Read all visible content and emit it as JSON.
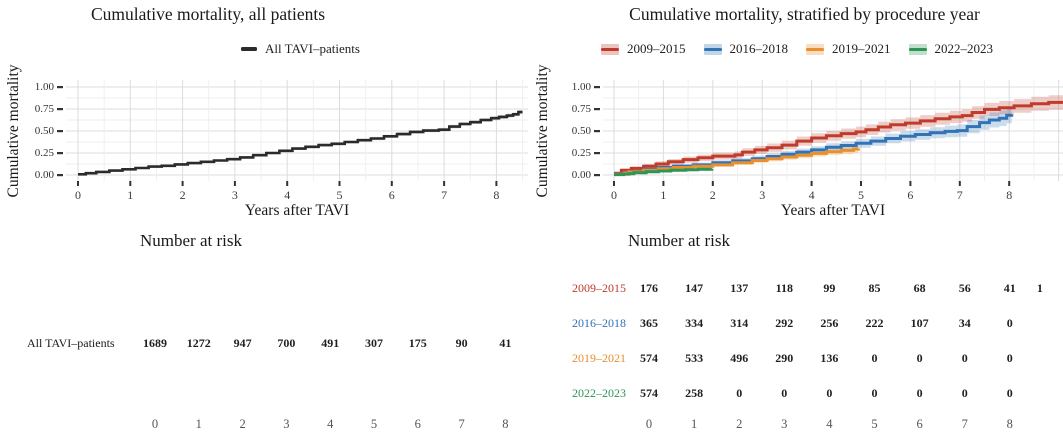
{
  "chart_data": [
    {
      "type": "line",
      "subtype": "cumulative-incidence-step-curve",
      "title": "Cumulative mortality, all patients",
      "xlabel": "Years after TAVI",
      "ylabel": "Cumulative mortality",
      "xlim": [
        0,
        8.55
      ],
      "ylim": [
        0,
        1
      ],
      "xticks": [
        "0",
        "1",
        "2",
        "3",
        "4",
        "5",
        "6",
        "7",
        "8"
      ],
      "yticks": [
        "1.00",
        "0.75",
        "0.50",
        "0.25",
        "0.00"
      ],
      "ytick_values": [
        1,
        0.75,
        0.5,
        0.25,
        0
      ],
      "grid": "major+minor",
      "legend_position": "top",
      "legend_key": "line",
      "series": [
        {
          "name": "All TAVI–patients",
          "color": "#2b2b2b",
          "band_opacity": 0.16,
          "points_t_v_ci": [
            [
              0,
              0.008,
              0.01
            ],
            [
              0.15,
              0.02,
              0.01
            ],
            [
              0.35,
              0.035,
              0.011
            ],
            [
              0.6,
              0.05,
              0.011
            ],
            [
              0.85,
              0.065,
              0.012
            ],
            [
              1.1,
              0.08,
              0.012
            ],
            [
              1.35,
              0.095,
              0.012
            ],
            [
              1.6,
              0.105,
              0.013
            ],
            [
              1.85,
              0.12,
              0.013
            ],
            [
              2.1,
              0.135,
              0.013
            ],
            [
              2.35,
              0.15,
              0.014
            ],
            [
              2.6,
              0.165,
              0.014
            ],
            [
              2.85,
              0.18,
              0.014
            ],
            [
              3.1,
              0.2,
              0.015
            ],
            [
              3.35,
              0.225,
              0.015
            ],
            [
              3.6,
              0.25,
              0.015
            ],
            [
              3.85,
              0.275,
              0.016
            ],
            [
              4.1,
              0.3,
              0.016
            ],
            [
              4.35,
              0.32,
              0.016
            ],
            [
              4.6,
              0.34,
              0.017
            ],
            [
              4.85,
              0.355,
              0.017
            ],
            [
              5.1,
              0.375,
              0.017
            ],
            [
              5.35,
              0.395,
              0.018
            ],
            [
              5.6,
              0.415,
              0.018
            ],
            [
              5.85,
              0.44,
              0.018
            ],
            [
              6.1,
              0.465,
              0.019
            ],
            [
              6.35,
              0.49,
              0.019
            ],
            [
              6.6,
              0.505,
              0.019
            ],
            [
              6.9,
              0.515,
              0.02
            ],
            [
              7.1,
              0.55,
              0.02
            ],
            [
              7.3,
              0.58,
              0.021
            ],
            [
              7.5,
              0.6,
              0.021
            ],
            [
              7.7,
              0.625,
              0.022
            ],
            [
              7.9,
              0.645,
              0.022
            ],
            [
              8.05,
              0.66,
              0.023
            ],
            [
              8.2,
              0.675,
              0.023
            ],
            [
              8.32,
              0.69,
              0.024
            ],
            [
              8.42,
              0.715,
              0.024
            ],
            [
              8.5,
              0.715,
              0.025
            ]
          ]
        }
      ],
      "risk_table": {
        "heading": "Number at risk",
        "rows": [
          {
            "label": "All TAVI–patients",
            "color": "#1a1a1a",
            "values": [
              "1689",
              "1272",
              "947",
              "700",
              "491",
              "307",
              "175",
              "90",
              "41"
            ],
            "partial_next": ""
          }
        ],
        "years": [
          "0",
          "1",
          "2",
          "3",
          "4",
          "5",
          "6",
          "7",
          "8"
        ]
      }
    },
    {
      "type": "line",
      "subtype": "cumulative-incidence-step-curve-with-ci",
      "title": "Cumulative mortality, stratified by procedure year",
      "xlabel": "Years after TAVI",
      "ylabel": "Cumulative mortality",
      "xlim": [
        0,
        9.2
      ],
      "ylim": [
        0,
        1
      ],
      "xticks": [
        "0",
        "1",
        "2",
        "3",
        "4",
        "5",
        "6",
        "7",
        "8"
      ],
      "yticks": [
        "1.00",
        "0.75",
        "0.50",
        "0.25",
        "0.00"
      ],
      "ytick_values": [
        1,
        0.75,
        0.5,
        0.25,
        0
      ],
      "grid": "major+minor",
      "legend_position": "top",
      "legend_key": "line+band",
      "series": [
        {
          "name": "2009–2015",
          "color": "#bf3b2b",
          "band_opacity": 0.25,
          "points_t_v_ci": [
            [
              0,
              0.02,
              0.012
            ],
            [
              0.15,
              0.055,
              0.018
            ],
            [
              0.35,
              0.075,
              0.022
            ],
            [
              0.6,
              0.1,
              0.026
            ],
            [
              0.85,
              0.125,
              0.03
            ],
            [
              1.1,
              0.15,
              0.032
            ],
            [
              1.4,
              0.175,
              0.035
            ],
            [
              1.7,
              0.195,
              0.037
            ],
            [
              2.0,
              0.215,
              0.04
            ],
            [
              2.45,
              0.228,
              0.04
            ],
            [
              2.6,
              0.26,
              0.044
            ],
            [
              2.85,
              0.285,
              0.046
            ],
            [
              3.1,
              0.31,
              0.048
            ],
            [
              3.4,
              0.34,
              0.05
            ],
            [
              3.7,
              0.385,
              0.052
            ],
            [
              4.0,
              0.42,
              0.055
            ],
            [
              4.3,
              0.445,
              0.056
            ],
            [
              4.6,
              0.47,
              0.058
            ],
            [
              4.9,
              0.49,
              0.06
            ],
            [
              5.1,
              0.515,
              0.06
            ],
            [
              5.35,
              0.545,
              0.062
            ],
            [
              5.6,
              0.57,
              0.064
            ],
            [
              5.9,
              0.59,
              0.065
            ],
            [
              6.2,
              0.615,
              0.066
            ],
            [
              6.5,
              0.64,
              0.068
            ],
            [
              6.8,
              0.66,
              0.07
            ],
            [
              7.05,
              0.675,
              0.07
            ],
            [
              7.25,
              0.71,
              0.072
            ],
            [
              7.5,
              0.745,
              0.074
            ],
            [
              7.8,
              0.765,
              0.076
            ],
            [
              8.1,
              0.785,
              0.078
            ],
            [
              8.45,
              0.81,
              0.08
            ],
            [
              8.8,
              0.825,
              0.082
            ],
            [
              9.2,
              0.83,
              0.085
            ]
          ]
        },
        {
          "name": "2016–2018",
          "color": "#3173b5",
          "band_opacity": 0.25,
          "points_t_v_ci": [
            [
              0,
              0.01,
              0.008
            ],
            [
              0.3,
              0.04,
              0.014
            ],
            [
              0.6,
              0.065,
              0.018
            ],
            [
              0.9,
              0.085,
              0.021
            ],
            [
              1.2,
              0.1,
              0.024
            ],
            [
              1.6,
              0.115,
              0.026
            ],
            [
              2.0,
              0.14,
              0.028
            ],
            [
              2.4,
              0.16,
              0.031
            ],
            [
              2.8,
              0.185,
              0.034
            ],
            [
              3.1,
              0.21,
              0.036
            ],
            [
              3.4,
              0.235,
              0.038
            ],
            [
              3.7,
              0.26,
              0.04
            ],
            [
              4.0,
              0.285,
              0.042
            ],
            [
              4.3,
              0.315,
              0.045
            ],
            [
              4.6,
              0.335,
              0.047
            ],
            [
              4.9,
              0.36,
              0.05
            ],
            [
              5.2,
              0.385,
              0.052
            ],
            [
              5.5,
              0.415,
              0.055
            ],
            [
              5.8,
              0.44,
              0.058
            ],
            [
              6.1,
              0.46,
              0.06
            ],
            [
              6.4,
              0.48,
              0.063
            ],
            [
              6.7,
              0.495,
              0.066
            ],
            [
              6.95,
              0.505,
              0.07
            ],
            [
              7.15,
              0.55,
              0.075
            ],
            [
              7.4,
              0.595,
              0.08
            ],
            [
              7.6,
              0.625,
              0.085
            ],
            [
              7.8,
              0.645,
              0.088
            ],
            [
              7.95,
              0.68,
              0.092
            ],
            [
              8.05,
              0.69,
              0.095
            ]
          ]
        },
        {
          "name": "2019–2021",
          "color": "#e88f2f",
          "band_opacity": 0.25,
          "points_t_v_ci": [
            [
              0,
              0.008,
              0.006
            ],
            [
              0.3,
              0.035,
              0.011
            ],
            [
              0.6,
              0.055,
              0.014
            ],
            [
              0.9,
              0.072,
              0.016
            ],
            [
              1.2,
              0.085,
              0.018
            ],
            [
              1.6,
              0.1,
              0.02
            ],
            [
              2.0,
              0.115,
              0.022
            ],
            [
              2.4,
              0.14,
              0.025
            ],
            [
              2.8,
              0.165,
              0.028
            ],
            [
              3.1,
              0.185,
              0.03
            ],
            [
              3.4,
              0.205,
              0.032
            ],
            [
              3.7,
              0.225,
              0.034
            ],
            [
              4.0,
              0.245,
              0.036
            ],
            [
              4.3,
              0.265,
              0.039
            ],
            [
              4.6,
              0.28,
              0.042
            ],
            [
              4.85,
              0.295,
              0.045
            ],
            [
              4.95,
              0.3,
              0.046
            ]
          ]
        },
        {
          "name": "2022–2023",
          "color": "#2f9456",
          "band_opacity": 0.25,
          "points_t_v_ci": [
            [
              0,
              0.004,
              0.004
            ],
            [
              0.2,
              0.015,
              0.007
            ],
            [
              0.4,
              0.026,
              0.009
            ],
            [
              0.65,
              0.037,
              0.011
            ],
            [
              0.9,
              0.046,
              0.013
            ],
            [
              1.15,
              0.054,
              0.015
            ],
            [
              1.45,
              0.06,
              0.017
            ],
            [
              1.7,
              0.066,
              0.019
            ],
            [
              1.98,
              0.07,
              0.02
            ]
          ]
        }
      ],
      "risk_table": {
        "heading": "Number at risk",
        "rows": [
          {
            "label": "2009–2015",
            "color": "#bf3b2b",
            "values": [
              "176",
              "147",
              "137",
              "118",
              "99",
              "85",
              "68",
              "56",
              "41"
            ],
            "partial_next": "1"
          },
          {
            "label": "2016–2018",
            "color": "#3173b5",
            "values": [
              "365",
              "334",
              "314",
              "292",
              "256",
              "222",
              "107",
              "34",
              "0"
            ],
            "partial_next": ""
          },
          {
            "label": "2019–2021",
            "color": "#e88f2f",
            "values": [
              "574",
              "533",
              "496",
              "290",
              "136",
              "0",
              "0",
              "0",
              "0"
            ],
            "partial_next": ""
          },
          {
            "label": "2022–2023",
            "color": "#2f9456",
            "values": [
              "574",
              "258",
              "0",
              "0",
              "0",
              "0",
              "0",
              "0",
              "0"
            ],
            "partial_next": ""
          }
        ],
        "years": [
          "0",
          "1",
          "2",
          "3",
          "4",
          "5",
          "6",
          "7",
          "8"
        ]
      }
    }
  ]
}
